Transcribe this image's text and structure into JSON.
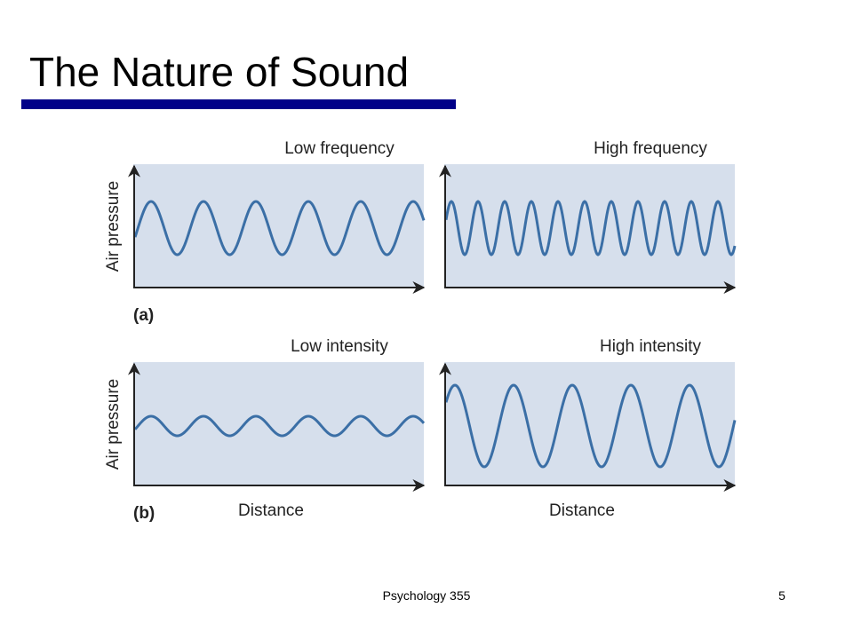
{
  "title": "The Nature of Sound",
  "rows": [
    {
      "tag": "(a)",
      "y_axis_label": "Air pressure",
      "panels": [
        {
          "label": "Low frequency"
        },
        {
          "label": "High frequency"
        }
      ]
    },
    {
      "tag": "(b)",
      "y_axis_label": "Air pressure",
      "panels": [
        {
          "label": "Low intensity",
          "x_axis_label": "Distance"
        },
        {
          "label": "High intensity",
          "x_axis_label": "Distance"
        }
      ]
    }
  ],
  "footer": {
    "course": "Psychology 355",
    "page": "5"
  }
}
